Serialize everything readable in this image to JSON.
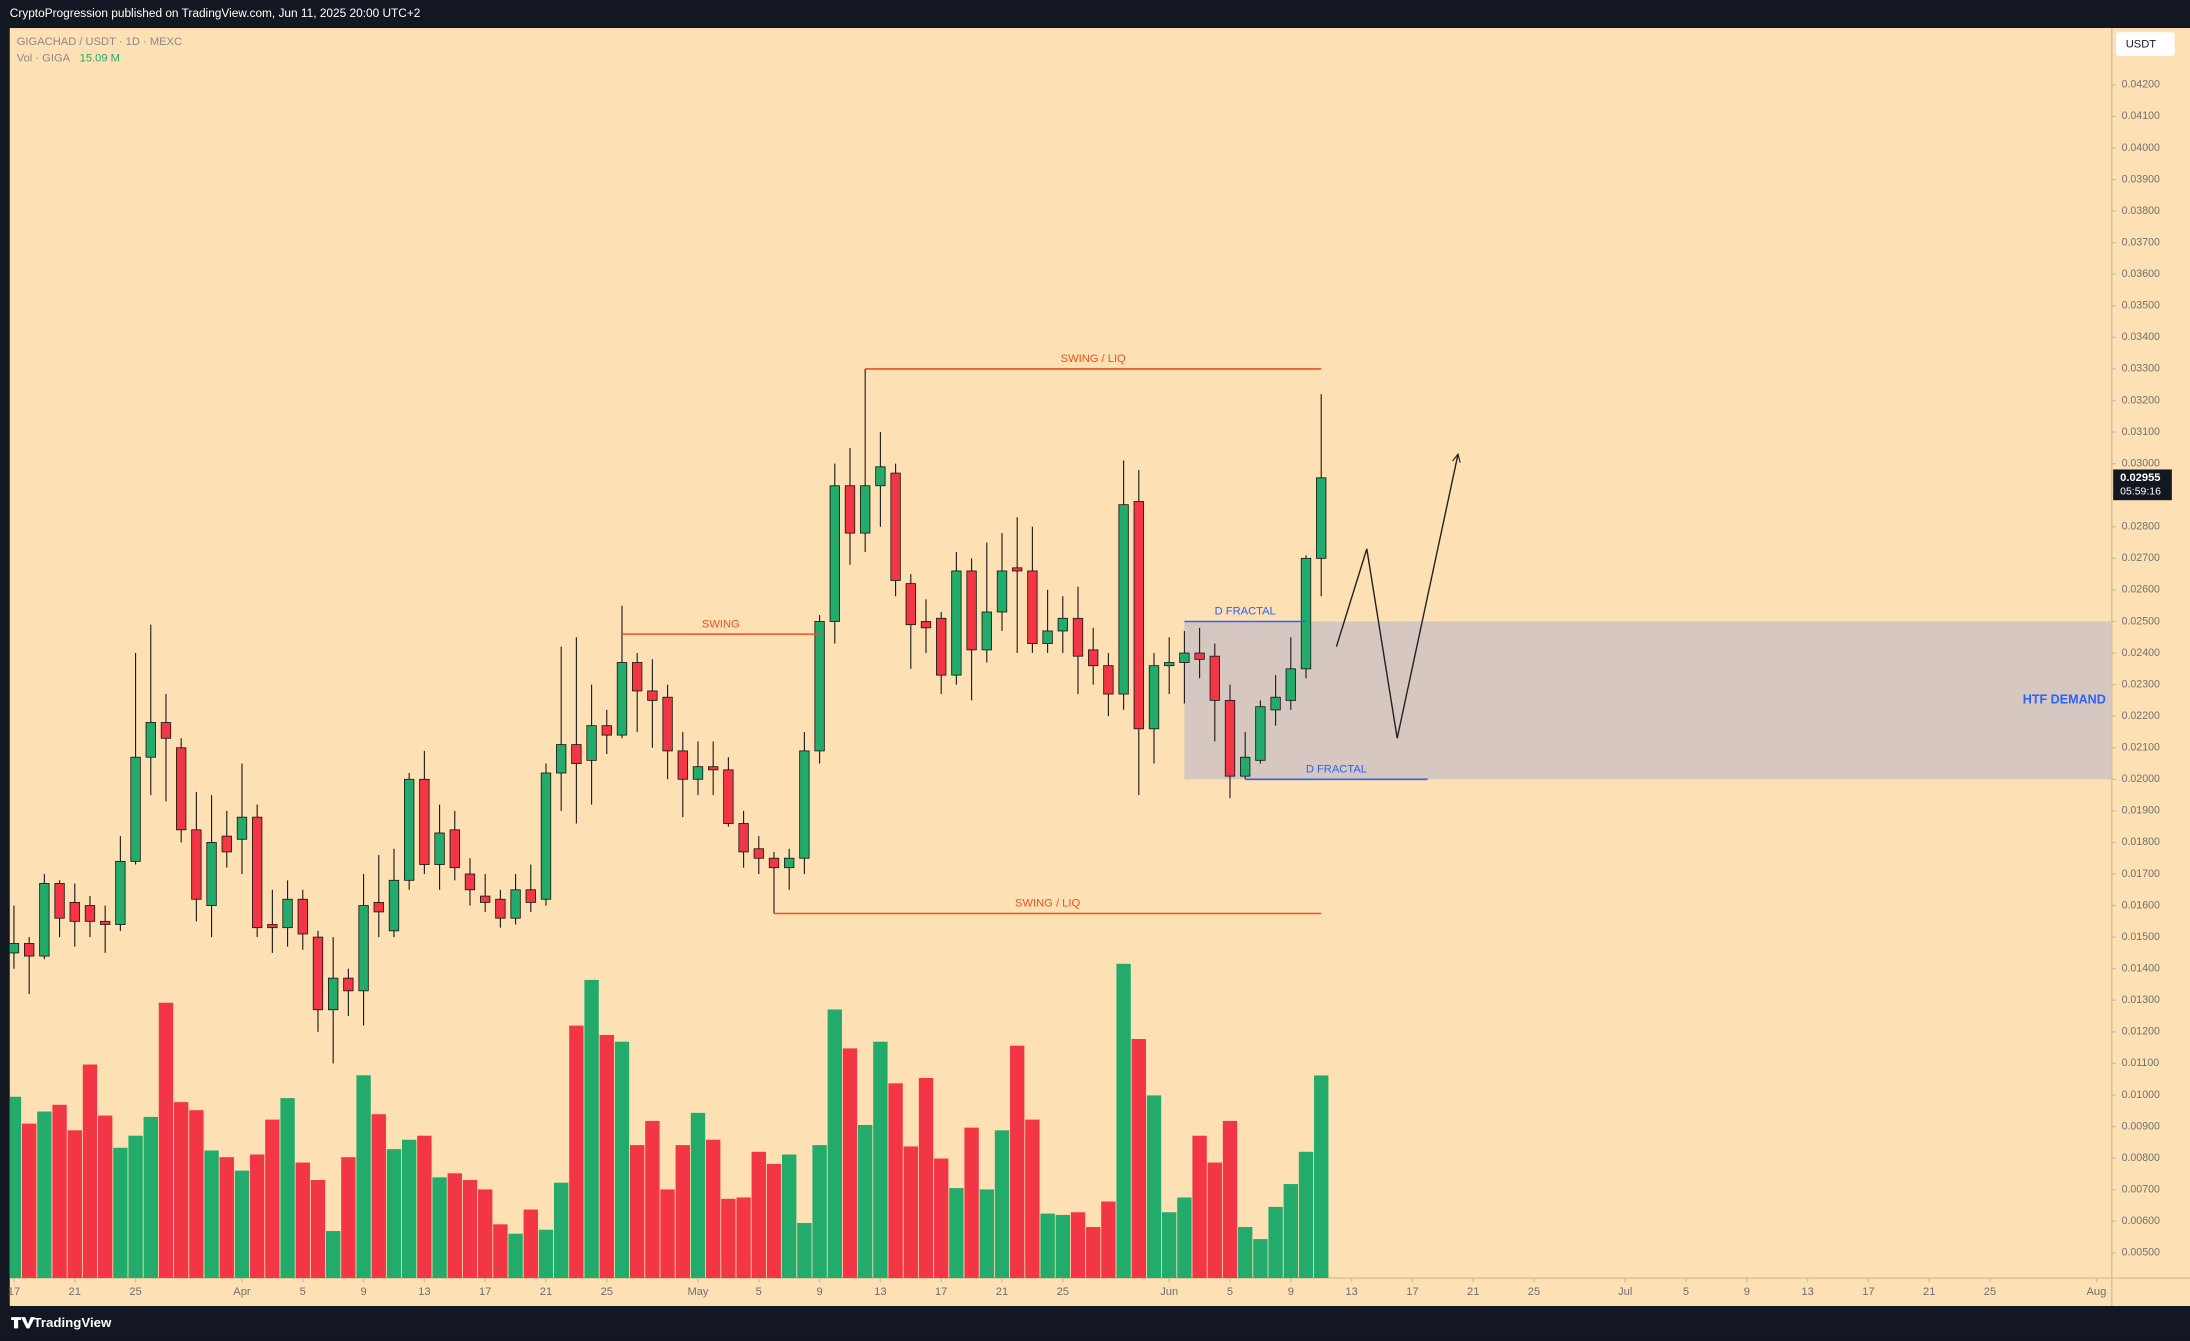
{
  "header": "CryptoProgression published on TradingView.com, Jun 11, 2025 20:00 UTC+2",
  "footer": "TradingView",
  "chart_data": {
    "type": "candlestick",
    "symbol": "GIGACHAD / USDT · 1D · MEXC",
    "currency": "USDT",
    "up_color": "#22ab6a",
    "down_color": "#f23645",
    "grid": false,
    "x": [
      "03-17",
      "03-18",
      "03-19",
      "03-20",
      "03-21",
      "03-22",
      "03-23",
      "03-24",
      "03-25",
      "03-26",
      "03-27",
      "03-28",
      "03-29",
      "03-30",
      "03-31",
      "04-01",
      "04-02",
      "04-03",
      "04-04",
      "04-05",
      "04-06",
      "04-07",
      "04-08",
      "04-09",
      "04-10",
      "04-11",
      "04-12",
      "04-13",
      "04-14",
      "04-15",
      "04-16",
      "04-17",
      "04-18",
      "04-19",
      "04-20",
      "04-21",
      "04-22",
      "04-23",
      "04-24",
      "04-25",
      "04-26",
      "04-27",
      "04-28",
      "04-29",
      "04-30",
      "05-01",
      "05-02",
      "05-03",
      "05-04",
      "05-05",
      "05-06",
      "05-07",
      "05-08",
      "05-09",
      "05-10",
      "05-11",
      "05-12",
      "05-13",
      "05-14",
      "05-15",
      "05-16",
      "05-17",
      "05-18",
      "05-19",
      "05-20",
      "05-21",
      "05-22",
      "05-23",
      "05-24",
      "05-25",
      "05-26",
      "05-27",
      "05-28",
      "05-29",
      "05-30",
      "05-31",
      "06-01",
      "06-02",
      "06-03",
      "06-04",
      "06-05",
      "06-06",
      "06-07",
      "06-08",
      "06-09",
      "06-10",
      "06-11"
    ],
    "open": [
      0.0145,
      0.0148,
      0.0144,
      0.0167,
      0.0161,
      0.016,
      0.0155,
      0.0154,
      0.0174,
      0.0207,
      0.0218,
      0.021,
      0.0184,
      0.016,
      0.0182,
      0.0181,
      0.0188,
      0.0154,
      0.0153,
      0.0162,
      0.015,
      0.0127,
      0.0137,
      0.0133,
      0.0161,
      0.0152,
      0.0168,
      0.02,
      0.0173,
      0.0184,
      0.017,
      0.0163,
      0.0162,
      0.0156,
      0.0165,
      0.0162,
      0.0202,
      0.0211,
      0.0206,
      0.0217,
      0.0214,
      0.0237,
      0.0228,
      0.0226,
      0.0209,
      0.02,
      0.0204,
      0.0203,
      0.0186,
      0.0178,
      0.0175,
      0.0172,
      0.0175,
      0.0209,
      0.025,
      0.0293,
      0.0278,
      0.0293,
      0.0297,
      0.0262,
      0.025,
      0.0251,
      0.0233,
      0.0266,
      0.0241,
      0.0253,
      0.0267,
      0.0266,
      0.0243,
      0.0247,
      0.0251,
      0.0241,
      0.0236,
      0.0227,
      0.0288,
      0.0216,
      0.0236,
      0.0237,
      0.024,
      0.0239,
      0.0225,
      0.0201,
      0.0206,
      0.0222,
      0.0225,
      0.0235,
      0.027
    ],
    "high": [
      0.016,
      0.015,
      0.017,
      0.0168,
      0.0167,
      0.0163,
      0.016,
      0.0182,
      0.024,
      0.0249,
      0.0227,
      0.0213,
      0.0196,
      0.0195,
      0.019,
      0.0205,
      0.0192,
      0.0165,
      0.0168,
      0.0165,
      0.0152,
      0.015,
      0.014,
      0.017,
      0.0176,
      0.0178,
      0.0202,
      0.0209,
      0.0192,
      0.019,
      0.0175,
      0.017,
      0.0165,
      0.017,
      0.0173,
      0.0205,
      0.0242,
      0.0245,
      0.023,
      0.0222,
      0.0255,
      0.024,
      0.0238,
      0.023,
      0.0215,
      0.0212,
      0.0212,
      0.0207,
      0.019,
      0.0182,
      0.0177,
      0.0178,
      0.0215,
      0.0252,
      0.03,
      0.0305,
      0.033,
      0.031,
      0.03,
      0.0265,
      0.0257,
      0.0253,
      0.0272,
      0.027,
      0.0275,
      0.0278,
      0.0283,
      0.028,
      0.026,
      0.0258,
      0.0261,
      0.0248,
      0.024,
      0.0301,
      0.0298,
      0.024,
      0.0245,
      0.0247,
      0.0248,
      0.0243,
      0.023,
      0.0215,
      0.0225,
      0.0233,
      0.0245,
      0.0271,
      0.0322
    ],
    "low": [
      0.014,
      0.0132,
      0.0143,
      0.015,
      0.0147,
      0.015,
      0.0145,
      0.0152,
      0.0173,
      0.0195,
      0.0193,
      0.018,
      0.0155,
      0.015,
      0.0172,
      0.017,
      0.015,
      0.0145,
      0.0147,
      0.0146,
      0.012,
      0.011,
      0.0125,
      0.0122,
      0.015,
      0.015,
      0.0165,
      0.017,
      0.0165,
      0.0168,
      0.016,
      0.0158,
      0.0153,
      0.0154,
      0.0158,
      0.016,
      0.019,
      0.0186,
      0.0192,
      0.0208,
      0.0213,
      0.0215,
      0.021,
      0.02,
      0.0188,
      0.0195,
      0.0195,
      0.0185,
      0.0172,
      0.017,
      0.01575,
      0.0165,
      0.017,
      0.0205,
      0.0243,
      0.0268,
      0.0272,
      0.028,
      0.0258,
      0.0235,
      0.024,
      0.0227,
      0.023,
      0.0225,
      0.0237,
      0.0247,
      0.024,
      0.024,
      0.024,
      0.024,
      0.0227,
      0.023,
      0.022,
      0.0222,
      0.0195,
      0.0205,
      0.0227,
      0.0224,
      0.0232,
      0.0212,
      0.0194,
      0.02,
      0.0205,
      0.0217,
      0.0222,
      0.0232,
      0.0258
    ],
    "close": [
      0.0148,
      0.0144,
      0.0167,
      0.0156,
      0.0155,
      0.0155,
      0.0154,
      0.0174,
      0.0207,
      0.0218,
      0.0213,
      0.0184,
      0.0162,
      0.018,
      0.0177,
      0.0188,
      0.0153,
      0.0153,
      0.0162,
      0.0151,
      0.0127,
      0.0137,
      0.0133,
      0.016,
      0.0158,
      0.0168,
      0.02,
      0.0173,
      0.0183,
      0.0172,
      0.0165,
      0.0161,
      0.0156,
      0.0165,
      0.0161,
      0.0202,
      0.0211,
      0.0205,
      0.0217,
      0.0214,
      0.0237,
      0.0228,
      0.0225,
      0.0209,
      0.02,
      0.0204,
      0.0203,
      0.0186,
      0.0177,
      0.0175,
      0.0172,
      0.0175,
      0.0209,
      0.025,
      0.0293,
      0.0278,
      0.0293,
      0.0299,
      0.0263,
      0.0249,
      0.0248,
      0.0233,
      0.0266,
      0.0241,
      0.0253,
      0.0266,
      0.0266,
      0.0243,
      0.0247,
      0.0251,
      0.0239,
      0.0236,
      0.0227,
      0.0287,
      0.0216,
      0.0236,
      0.0237,
      0.024,
      0.0238,
      0.0225,
      0.0201,
      0.0207,
      0.0223,
      0.0226,
      0.0235,
      0.027,
      0.02955
    ],
    "volume": {
      "name": "Vol · GIGA",
      "last_label": "15.09 M",
      "values": [
        13.5,
        11.5,
        12.4,
        12.9,
        11.0,
        15.9,
        12.1,
        9.7,
        10.6,
        12.0,
        20.5,
        13.1,
        12.5,
        9.5,
        9.0,
        8.0,
        9.2,
        11.8,
        13.4,
        8.6,
        7.3,
        3.5,
        9.0,
        15.1,
        12.2,
        9.6,
        10.3,
        10.6,
        7.5,
        7.8,
        7.3,
        6.6,
        4.0,
        3.3,
        5.1,
        3.6,
        7.1,
        18.8,
        22.2,
        18.1,
        17.6,
        9.9,
        11.7,
        6.6,
        9.9,
        12.3,
        10.3,
        5.9,
        6.0,
        9.4,
        8.5,
        9.2,
        4.1,
        9.9,
        20.0,
        17.1,
        11.4,
        17.6,
        14.5,
        9.8,
        14.9,
        8.9,
        6.7,
        11.2,
        6.6,
        11.0,
        17.3,
        11.8,
        4.8,
        4.7,
        4.9,
        3.8,
        5.7,
        23.4,
        17.8,
        13.6,
        4.9,
        6.0,
        10.6,
        8.6,
        11.7,
        3.8,
        2.9,
        5.3,
        7.0,
        9.4,
        15.09
      ]
    },
    "price_label": "0.02955",
    "countdown": "05:59:16",
    "ylim": [
      0.0042,
      0.0438
    ],
    "yticks": [
      {
        "value": 0.005,
        "label": "0.00500"
      },
      {
        "value": 0.006,
        "label": "0.00600"
      },
      {
        "value": 0.007,
        "label": "0.00700"
      },
      {
        "value": 0.008,
        "label": "0.00800"
      },
      {
        "value": 0.009,
        "label": "0.00900"
      },
      {
        "value": 0.01,
        "label": "0.01000"
      },
      {
        "value": 0.011,
        "label": "0.01100"
      },
      {
        "value": 0.012,
        "label": "0.01200"
      },
      {
        "value": 0.013,
        "label": "0.01300"
      },
      {
        "value": 0.014,
        "label": "0.01400"
      },
      {
        "value": 0.015,
        "label": "0.01500"
      },
      {
        "value": 0.016,
        "label": "0.01600"
      },
      {
        "value": 0.017,
        "label": "0.01700"
      },
      {
        "value": 0.018,
        "label": "0.01800"
      },
      {
        "value": 0.019,
        "label": "0.01900"
      },
      {
        "value": 0.02,
        "label": "0.02000"
      },
      {
        "value": 0.021,
        "label": "0.02100"
      },
      {
        "value": 0.022,
        "label": "0.02200"
      },
      {
        "value": 0.023,
        "label": "0.02300"
      },
      {
        "value": 0.024,
        "label": "0.02400"
      },
      {
        "value": 0.025,
        "label": "0.02500"
      },
      {
        "value": 0.026,
        "label": "0.02600"
      },
      {
        "value": 0.027,
        "label": "0.02700"
      },
      {
        "value": 0.028,
        "label": "0.02800"
      },
      {
        "value": 0.029,
        "label": "0.02900"
      },
      {
        "value": 0.03,
        "label": "0.03000"
      },
      {
        "value": 0.031,
        "label": "0.03100"
      },
      {
        "value": 0.032,
        "label": "0.03200"
      },
      {
        "value": 0.033,
        "label": "0.03300"
      },
      {
        "value": 0.034,
        "label": "0.03400"
      },
      {
        "value": 0.035,
        "label": "0.03500"
      },
      {
        "value": 0.036,
        "label": "0.03600"
      },
      {
        "value": 0.037,
        "label": "0.03700"
      },
      {
        "value": 0.038,
        "label": "0.03800"
      },
      {
        "value": 0.039,
        "label": "0.03900"
      },
      {
        "value": 0.04,
        "label": "0.04000"
      },
      {
        "value": 0.041,
        "label": "0.04100"
      },
      {
        "value": 0.042,
        "label": "0.04200"
      }
    ],
    "xlim": [
      "03-17",
      "08-01"
    ],
    "xticks": [
      {
        "value": "03-17",
        "label": "17"
      },
      {
        "value": "03-21",
        "label": "21"
      },
      {
        "value": "03-25",
        "label": "25"
      },
      {
        "value": "04-01",
        "label": "Apr"
      },
      {
        "value": "04-05",
        "label": "5"
      },
      {
        "value": "04-09",
        "label": "9"
      },
      {
        "value": "04-13",
        "label": "13"
      },
      {
        "value": "04-17",
        "label": "17"
      },
      {
        "value": "04-21",
        "label": "21"
      },
      {
        "value": "04-25",
        "label": "25"
      },
      {
        "value": "05-01",
        "label": "May"
      },
      {
        "value": "05-05",
        "label": "5"
      },
      {
        "value": "05-09",
        "label": "9"
      },
      {
        "value": "05-13",
        "label": "13"
      },
      {
        "value": "05-17",
        "label": "17"
      },
      {
        "value": "05-21",
        "label": "21"
      },
      {
        "value": "05-25",
        "label": "25"
      },
      {
        "value": "06-01",
        "label": "Jun"
      },
      {
        "value": "06-05",
        "label": "5"
      },
      {
        "value": "06-09",
        "label": "9"
      },
      {
        "value": "06-13",
        "label": "13"
      },
      {
        "value": "06-17",
        "label": "17"
      },
      {
        "value": "06-21",
        "label": "21"
      },
      {
        "value": "06-25",
        "label": "25"
      },
      {
        "value": "07-01",
        "label": "Jul"
      },
      {
        "value": "07-05",
        "label": "5"
      },
      {
        "value": "07-09",
        "label": "9"
      },
      {
        "value": "07-13",
        "label": "13"
      },
      {
        "value": "07-17",
        "label": "17"
      },
      {
        "value": "07-21",
        "label": "21"
      },
      {
        "value": "07-25",
        "label": "25"
      },
      {
        "value": "08-01",
        "label": "Aug"
      }
    ],
    "zone": {
      "label": "HTF DEMAND",
      "from": 0.02,
      "to": 0.025,
      "x_start": "06-02",
      "color": "#cfc3c2",
      "text_color": "#2962ff"
    },
    "levels": [
      {
        "label": "SWING / LIQ",
        "y": 0.033,
        "x": [
          "05-12",
          "06-11"
        ],
        "color": "#e8531f"
      },
      {
        "label": "SWING",
        "y": 0.0246,
        "x": [
          "04-26",
          "05-09"
        ],
        "color": "#e8531f"
      },
      {
        "label": "SWING / LIQ",
        "y": 0.01575,
        "x": [
          "05-06",
          "06-11"
        ],
        "color": "#e8531f"
      },
      {
        "label": "D FRACTAL",
        "y": 0.025,
        "x": [
          "06-02",
          "06-10"
        ],
        "color": "#2962ff"
      },
      {
        "label": "D FRACTAL",
        "y": 0.02,
        "x": [
          "06-06",
          "06-18"
        ],
        "color": "#2962ff"
      }
    ],
    "projection": {
      "x": [
        "06-12",
        "06-14",
        "06-16",
        "06-20"
      ],
      "y": [
        0.0242,
        0.0273,
        0.0213,
        0.0303
      ],
      "color": "#222222"
    }
  }
}
